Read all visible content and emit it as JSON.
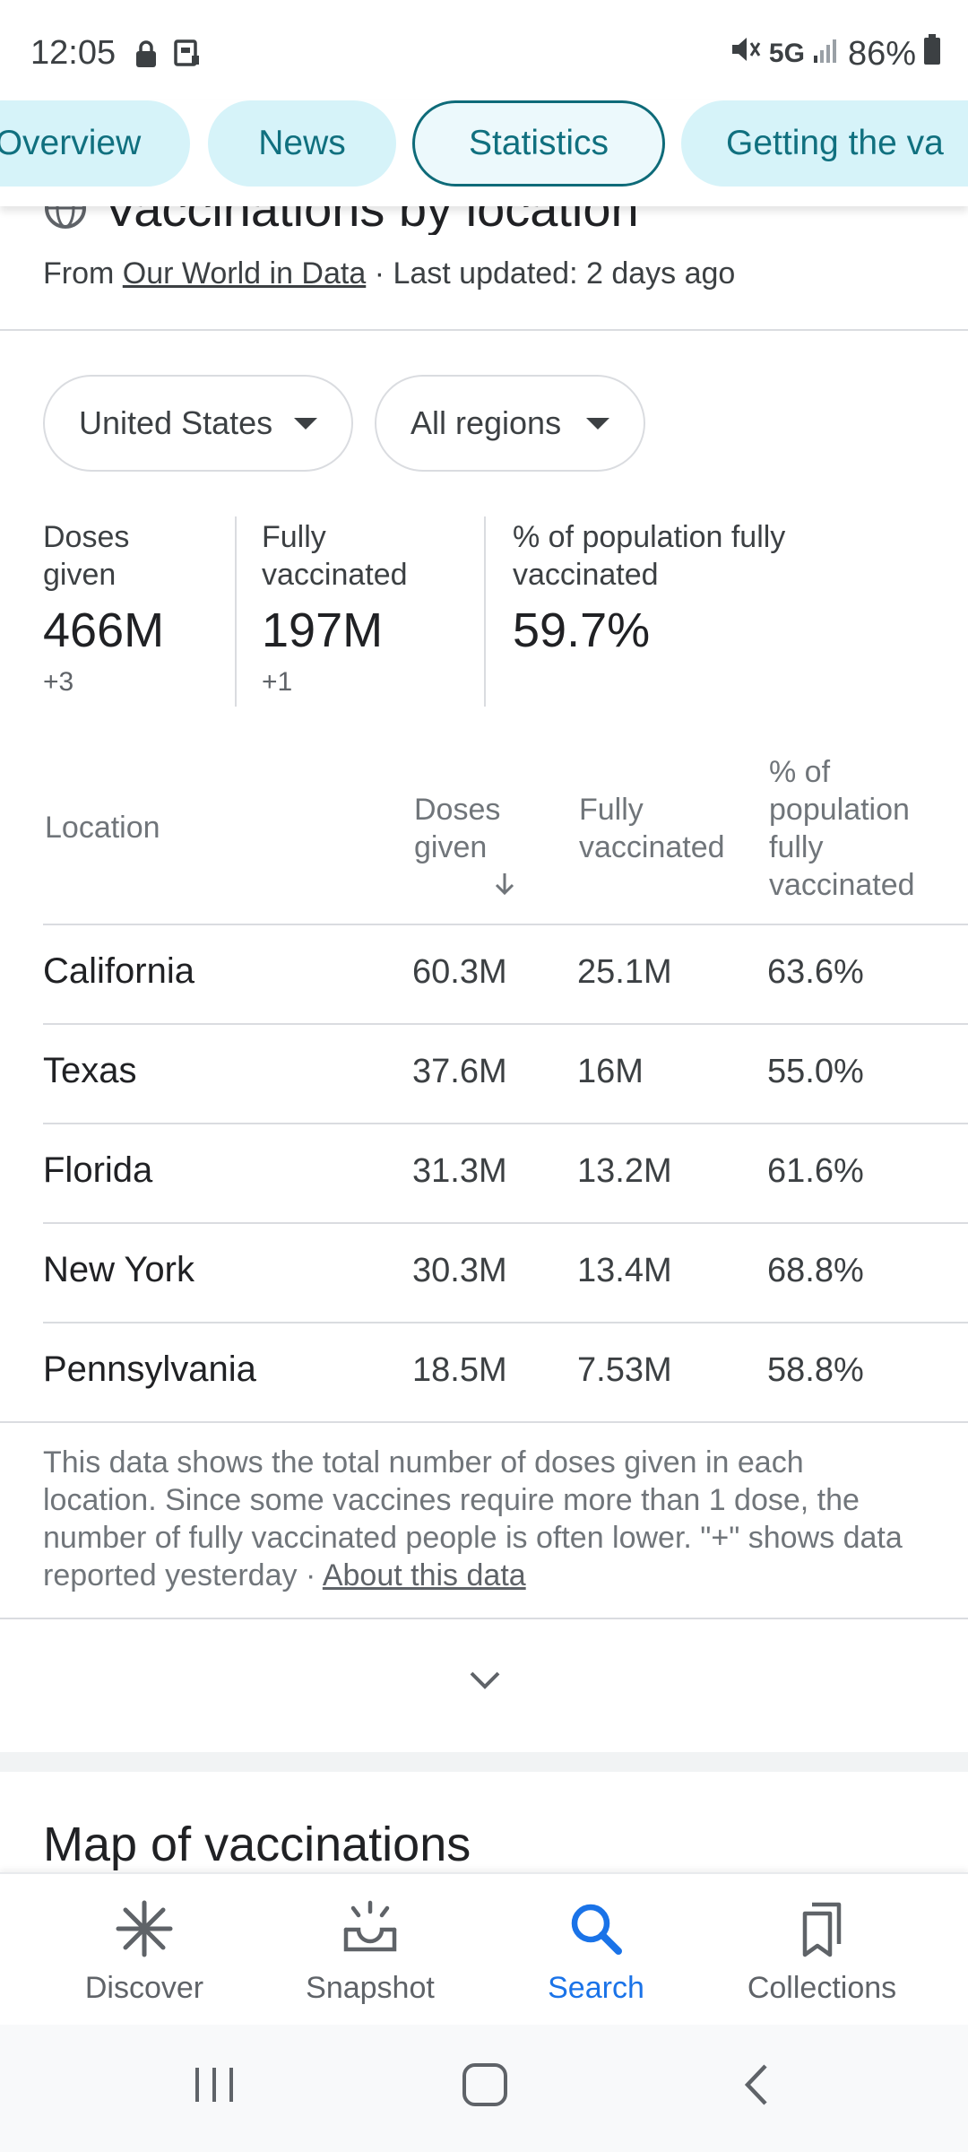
{
  "status_bar": {
    "time": "12:05",
    "network": "5G",
    "battery": "86%"
  },
  "tabs": [
    {
      "label": "Overview",
      "active": false
    },
    {
      "label": "News",
      "active": false
    },
    {
      "label": "Statistics",
      "active": true
    },
    {
      "label": "Getting the va",
      "active": false
    }
  ],
  "header": {
    "title": "Vaccinations by location",
    "source_prefix": "From ",
    "source_link": "Our World in Data",
    "updated": " · Last updated: 2 days ago"
  },
  "filters": {
    "country": "United States",
    "region": "All regions"
  },
  "summary": [
    {
      "label_line1": "Doses",
      "label_line2": "given",
      "value": "466M",
      "delta": "+3"
    },
    {
      "label_line1": "Fully",
      "label_line2": "vaccinated",
      "value": "197M",
      "delta": "+1"
    },
    {
      "label_line1": "% of population fully",
      "label_line2": "vaccinated",
      "value": "59.7%",
      "delta": ""
    }
  ],
  "table": {
    "headers": {
      "location": "Location",
      "doses_1": "Doses",
      "doses_2": "given",
      "fully_1": "Fully",
      "fully_2": "vaccinated",
      "pct_1": "% of",
      "pct_2": "population",
      "pct_3": "fully",
      "pct_4": "vaccinated"
    },
    "rows": [
      {
        "location": "California",
        "doses": "60.3M",
        "fully": "25.1M",
        "pct": "63.6%"
      },
      {
        "location": "Texas",
        "doses": "37.6M",
        "fully": "16M",
        "pct": "55.0%"
      },
      {
        "location": "Florida",
        "doses": "31.3M",
        "fully": "13.2M",
        "pct": "61.6%"
      },
      {
        "location": "New York",
        "doses": "30.3M",
        "fully": "13.4M",
        "pct": "68.8%"
      },
      {
        "location": "Pennsylvania",
        "doses": "18.5M",
        "fully": "7.53M",
        "pct": "58.8%"
      }
    ]
  },
  "footnote": {
    "text": "This data shows the total number of doses given in each location. Since some vaccines require more than 1 dose, the number of fully vaccinated people is often lower. \"+\" shows data reported yesterday",
    "separator": " · ",
    "link": "About this data"
  },
  "map_section": {
    "title": "Map of vaccinations"
  },
  "bottom_nav": [
    {
      "label": "Discover",
      "icon": "asterisk-icon",
      "active": false
    },
    {
      "label": "Snapshot",
      "icon": "snapshot-tray-icon",
      "active": false
    },
    {
      "label": "Search",
      "icon": "search-icon",
      "active": true
    },
    {
      "label": "Collections",
      "icon": "bookmarks-icon",
      "active": false
    }
  ],
  "colors": {
    "chip_bg": "#d6f3f9",
    "chip_text": "#10707f",
    "active_blue": "#1a73e8"
  }
}
